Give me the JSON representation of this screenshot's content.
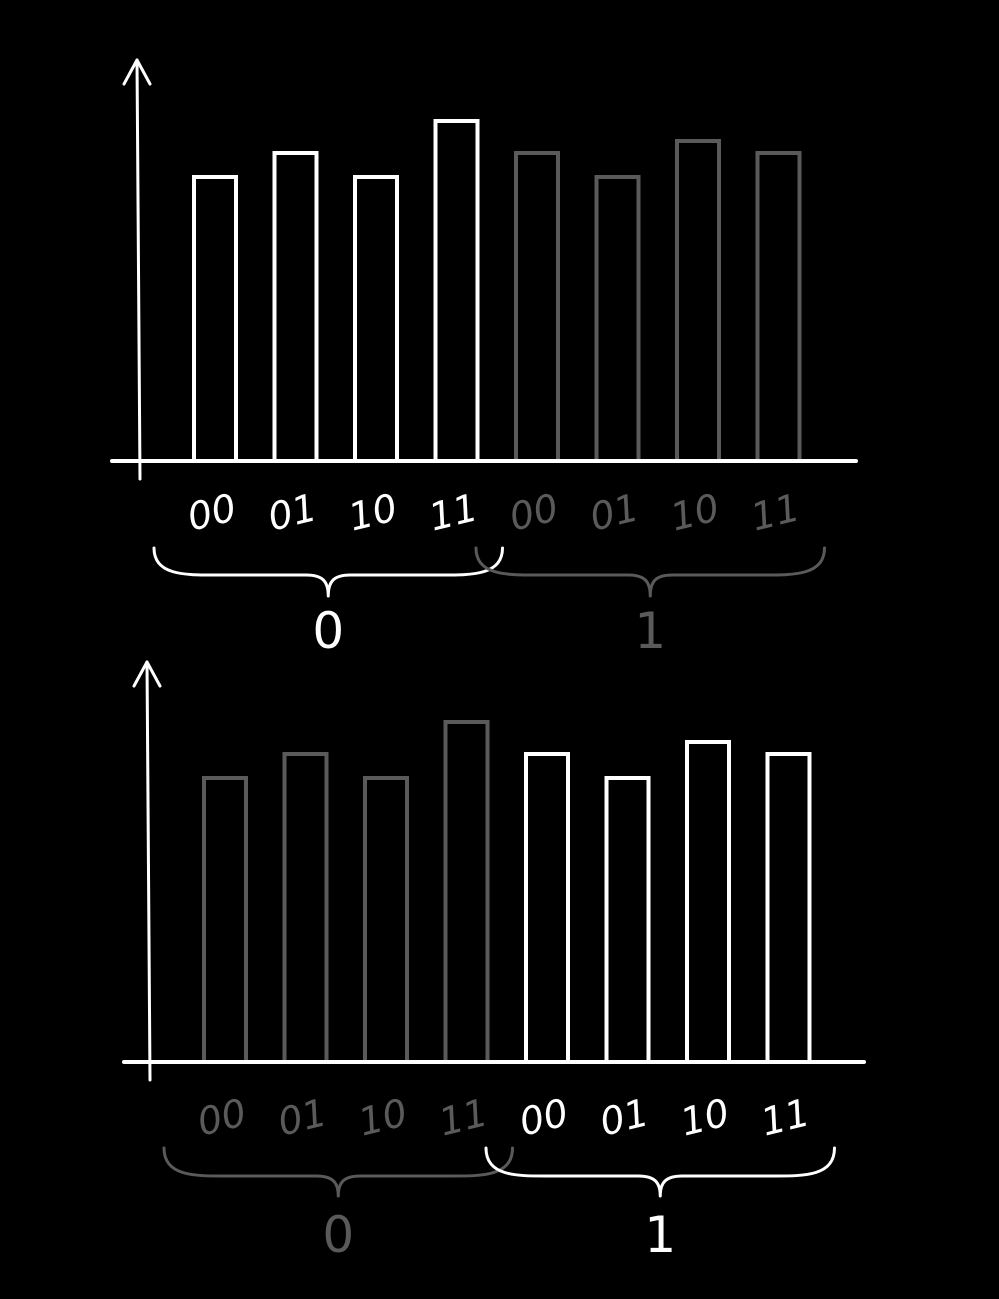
{
  "colors": {
    "background": "#000000",
    "highlight": "#ffffff",
    "dim": "#5a5a5a"
  },
  "chart_data": [
    {
      "type": "bar",
      "title": "",
      "xlabel": "",
      "ylabel": "",
      "y_axis_arrow": true,
      "grid": false,
      "bar_style": "outlined",
      "ylim": [
        0,
        1
      ],
      "categories": [
        "00",
        "01",
        "10",
        "11",
        "00",
        "01",
        "10",
        "11"
      ],
      "values": [
        0.71,
        0.77,
        0.71,
        0.85,
        0.77,
        0.71,
        0.8,
        0.77
      ],
      "groups": [
        {
          "label": "0",
          "highlighted": true
        },
        {
          "label": "1",
          "highlighted": false
        }
      ]
    },
    {
      "type": "bar",
      "title": "",
      "xlabel": "",
      "ylabel": "",
      "y_axis_arrow": true,
      "grid": false,
      "bar_style": "outlined",
      "ylim": [
        0,
        1
      ],
      "categories": [
        "00",
        "01",
        "10",
        "11",
        "00",
        "01",
        "10",
        "11"
      ],
      "values": [
        0.71,
        0.77,
        0.71,
        0.85,
        0.77,
        0.71,
        0.8,
        0.77
      ],
      "groups": [
        {
          "label": "0",
          "highlighted": false
        },
        {
          "label": "1",
          "highlighted": true
        }
      ]
    }
  ]
}
